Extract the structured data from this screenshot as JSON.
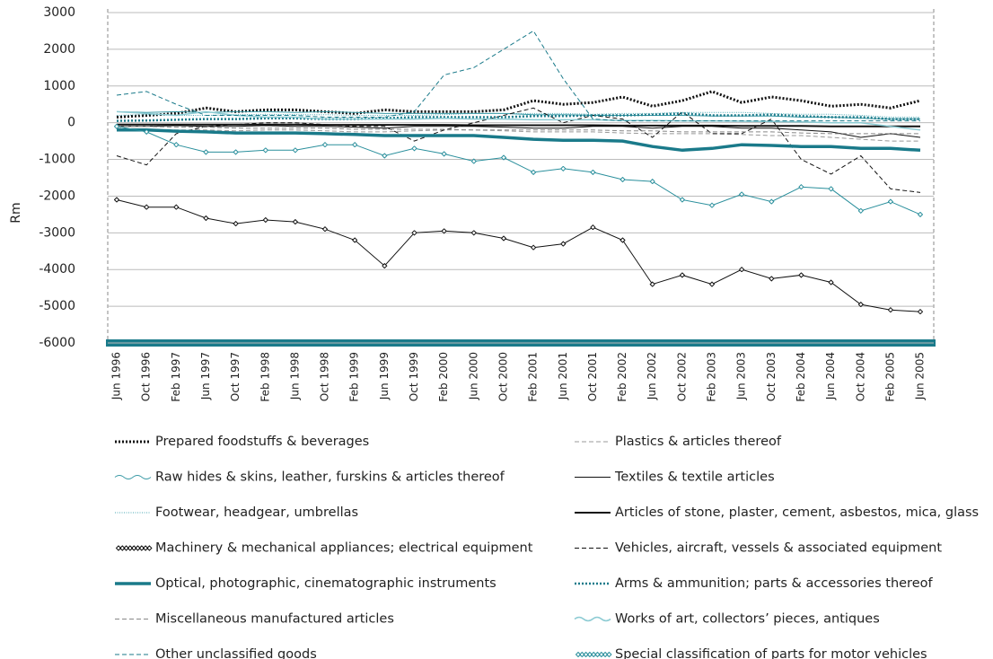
{
  "chart_data": {
    "type": "line",
    "y_label": "Rm",
    "categories": [
      "Jun 1996",
      "Oct 1996",
      "Feb 1997",
      "Jun 1997",
      "Oct 1997",
      "Feb 1998",
      "Jun 1998",
      "Oct 1998",
      "Feb 1999",
      "Jun 1999",
      "Oct 1999",
      "Feb 2000",
      "Jun 2000",
      "Oct 2000",
      "Feb 2001",
      "Jun 2001",
      "Oct 2001",
      "Feb 2002",
      "Jun 2002",
      "Oct 2002",
      "Feb 2003",
      "Jun 2003",
      "Oct 2003",
      "Feb 2004",
      "Jun 2004",
      "Oct 2004",
      "Feb 2005",
      "Jun 2005"
    ],
    "ylim": [
      -6000,
      3000
    ],
    "yticks": [
      3000,
      2000,
      1000,
      0,
      -1000,
      -2000,
      -3000,
      -4000,
      -5000,
      -6000
    ],
    "grid": true,
    "series": [
      {
        "name": "Prepared foodstuffs & beverages",
        "color": "#111111",
        "style": "dotted",
        "width": 3,
        "values": [
          150,
          200,
          250,
          400,
          300,
          350,
          350,
          300,
          250,
          350,
          300,
          300,
          300,
          350,
          600,
          500,
          550,
          700,
          450,
          600,
          850,
          550,
          700,
          600,
          450,
          500,
          400,
          600
        ]
      },
      {
        "name": "Plastics & articles thereof",
        "color": "#999999",
        "style": "dashed",
        "width": 1,
        "values": [
          -150,
          -180,
          -200,
          -200,
          -220,
          -200,
          -200,
          -220,
          -250,
          -250,
          -220,
          -200,
          -200,
          -220,
          -250,
          -250,
          -250,
          -280,
          -300,
          -300,
          -300,
          -320,
          -350,
          -350,
          -400,
          -450,
          -500,
          -500
        ]
      },
      {
        "name": "Raw hides & skins, leather, furskins & articles thereof",
        "color": "#3a9aa6",
        "style": "wave",
        "width": 1,
        "values": [
          300,
          280,
          300,
          280,
          300,
          300,
          280,
          300,
          280,
          250,
          250,
          250,
          250,
          250,
          220,
          220,
          200,
          200,
          200,
          200,
          180,
          180,
          180,
          150,
          150,
          120,
          100,
          100
        ]
      },
      {
        "name": "Textiles & textile articles",
        "color": "#111111",
        "style": "solid",
        "width": 1,
        "values": [
          -100,
          -100,
          -80,
          -100,
          -100,
          -80,
          -100,
          -100,
          -120,
          -150,
          -100,
          -100,
          -100,
          -120,
          -150,
          -150,
          -100,
          -100,
          -150,
          -100,
          -100,
          -150,
          -150,
          -200,
          -250,
          -400,
          -300,
          -400
        ]
      },
      {
        "name": "Footwear, headgear, umbrellas",
        "color": "#4aa7b3",
        "style": "fine",
        "width": 1,
        "values": [
          200,
          220,
          200,
          200,
          220,
          230,
          220,
          220,
          200,
          200,
          200,
          220,
          250,
          250,
          250,
          250,
          230,
          250,
          250,
          280,
          280,
          280,
          250,
          230,
          230,
          200,
          150,
          150
        ]
      },
      {
        "name": "Articles of stone, plaster, cement, asbestos, mica, glass",
        "color": "#111111",
        "style": "solid",
        "width": 2,
        "values": [
          -50,
          -50,
          -50,
          -50,
          -50,
          -50,
          -50,
          -60,
          -60,
          -60,
          -60,
          -60,
          -70,
          -70,
          -70,
          -70,
          -70,
          -80,
          -80,
          -80,
          -80,
          -90,
          -90,
          -90,
          -100,
          -100,
          -100,
          -100
        ]
      },
      {
        "name": "Machinery & mechanical appliances; electrical equipment",
        "color": "#111111",
        "style": "diamond",
        "width": 1,
        "values": [
          -2100,
          -2300,
          -2300,
          -2600,
          -2750,
          -2650,
          -2700,
          -2900,
          -3200,
          -3900,
          -3000,
          -2950,
          -3000,
          -3150,
          -3400,
          -3300,
          -2850,
          -3200,
          -4400,
          -4150,
          -4400,
          -4000,
          -4250,
          -4150,
          -4350,
          -4950,
          -5100,
          -5150
        ]
      },
      {
        "name": "Vehicles, aircraft, vessels & associated equipment",
        "color": "#111111",
        "style": "dashed",
        "width": 1,
        "values": [
          -900,
          -1150,
          -300,
          -100,
          -50,
          0,
          0,
          -50,
          -100,
          -100,
          -500,
          -200,
          0,
          200,
          400,
          0,
          200,
          100,
          -400,
          300,
          -300,
          -300,
          100,
          -1000,
          -1400,
          -900,
          -1800,
          -1900
        ]
      },
      {
        "name": "Optical, photographic, cinematographic instruments",
        "color": "#1a7a8a",
        "style": "solid",
        "width": 3.5,
        "values": [
          -200,
          -200,
          -230,
          -250,
          -280,
          -280,
          -280,
          -300,
          -320,
          -350,
          -350,
          -350,
          -350,
          -400,
          -450,
          -480,
          -480,
          -500,
          -650,
          -750,
          -700,
          -600,
          -620,
          -650,
          -650,
          -700,
          -700,
          -750
        ]
      },
      {
        "name": "Arms & ammunition; parts & accessories thereof",
        "color": "#1a7a8a",
        "style": "dotted",
        "width": 2.5,
        "values": [
          50,
          60,
          80,
          100,
          100,
          120,
          120,
          100,
          100,
          120,
          150,
          150,
          150,
          150,
          180,
          180,
          200,
          200,
          220,
          250,
          200,
          200,
          220,
          180,
          150,
          150,
          100,
          100
        ]
      },
      {
        "name": "Miscellaneous manufactured articles",
        "color": "#888888",
        "style": "dashed",
        "width": 1,
        "values": [
          -100,
          -100,
          -120,
          -120,
          -150,
          -150,
          -150,
          -150,
          -180,
          -180,
          -180,
          -180,
          -200,
          -200,
          -200,
          -200,
          -200,
          -220,
          -220,
          -250,
          -250,
          -250,
          -250,
          -280,
          -300,
          -300,
          -300,
          -300
        ]
      },
      {
        "name": "Works of art, collectors’ pieces, antiques",
        "color": "#8ccbd3",
        "style": "wave",
        "width": 1.5,
        "values": [
          300,
          250,
          200,
          300,
          200,
          150,
          150,
          100,
          100,
          100,
          100,
          120,
          100,
          100,
          80,
          80,
          80,
          60,
          60,
          50,
          50,
          40,
          30,
          20,
          0,
          0,
          -100,
          -200
        ]
      },
      {
        "name": "Other unclassified goods",
        "color": "#1a7a8a",
        "style": "dashed",
        "width": 1,
        "values": [
          750,
          850,
          500,
          200,
          200,
          200,
          200,
          150,
          150,
          150,
          300,
          1300,
          1500,
          2000,
          2500,
          1200,
          100,
          50,
          50,
          50,
          50,
          50,
          50,
          50,
          50,
          50,
          50,
          50
        ]
      },
      {
        "name": "Special classification of parts for motor vehicles",
        "color": "#2a8f9c",
        "style": "diamond",
        "width": 1,
        "values": [
          -100,
          -250,
          -600,
          -800,
          -800,
          -750,
          -750,
          -600,
          -600,
          -900,
          -700,
          -850,
          -1050,
          -950,
          -1350,
          -1250,
          -1350,
          -1550,
          -1600,
          -2100,
          -2250,
          -1950,
          -2150,
          -1750,
          -1800,
          -2400,
          -2150,
          -2500
        ]
      }
    ]
  }
}
